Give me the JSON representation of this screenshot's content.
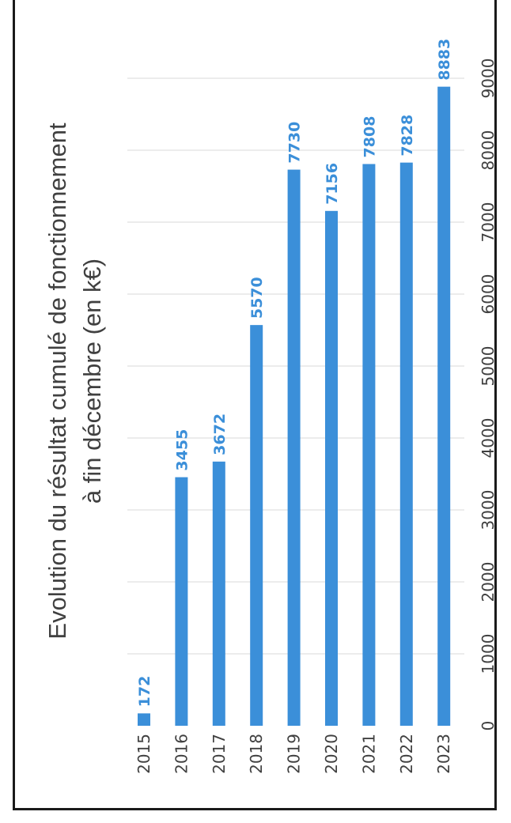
{
  "chart_data": {
    "type": "bar",
    "orientation": "horizontal",
    "title": "Evolution du résultat cumulé de fonctionnement",
    "subtitle": "à fin décembre (en k€)",
    "categories": [
      "2015",
      "2016",
      "2017",
      "2018",
      "2019",
      "2020",
      "2021",
      "2022",
      "2023"
    ],
    "values": [
      172,
      3455,
      3672,
      5570,
      7730,
      7156,
      7808,
      7828,
      8883
    ],
    "xlim": [
      0,
      9000
    ],
    "xticks": [
      0,
      1000,
      2000,
      3000,
      4000,
      5000,
      6000,
      7000,
      8000,
      9000
    ],
    "xlabel": "",
    "ylabel": "",
    "grid": true,
    "legend": "none",
    "bar_color": "#3b8fd9",
    "label_color": "#3b8fd9",
    "data_labels": true
  }
}
